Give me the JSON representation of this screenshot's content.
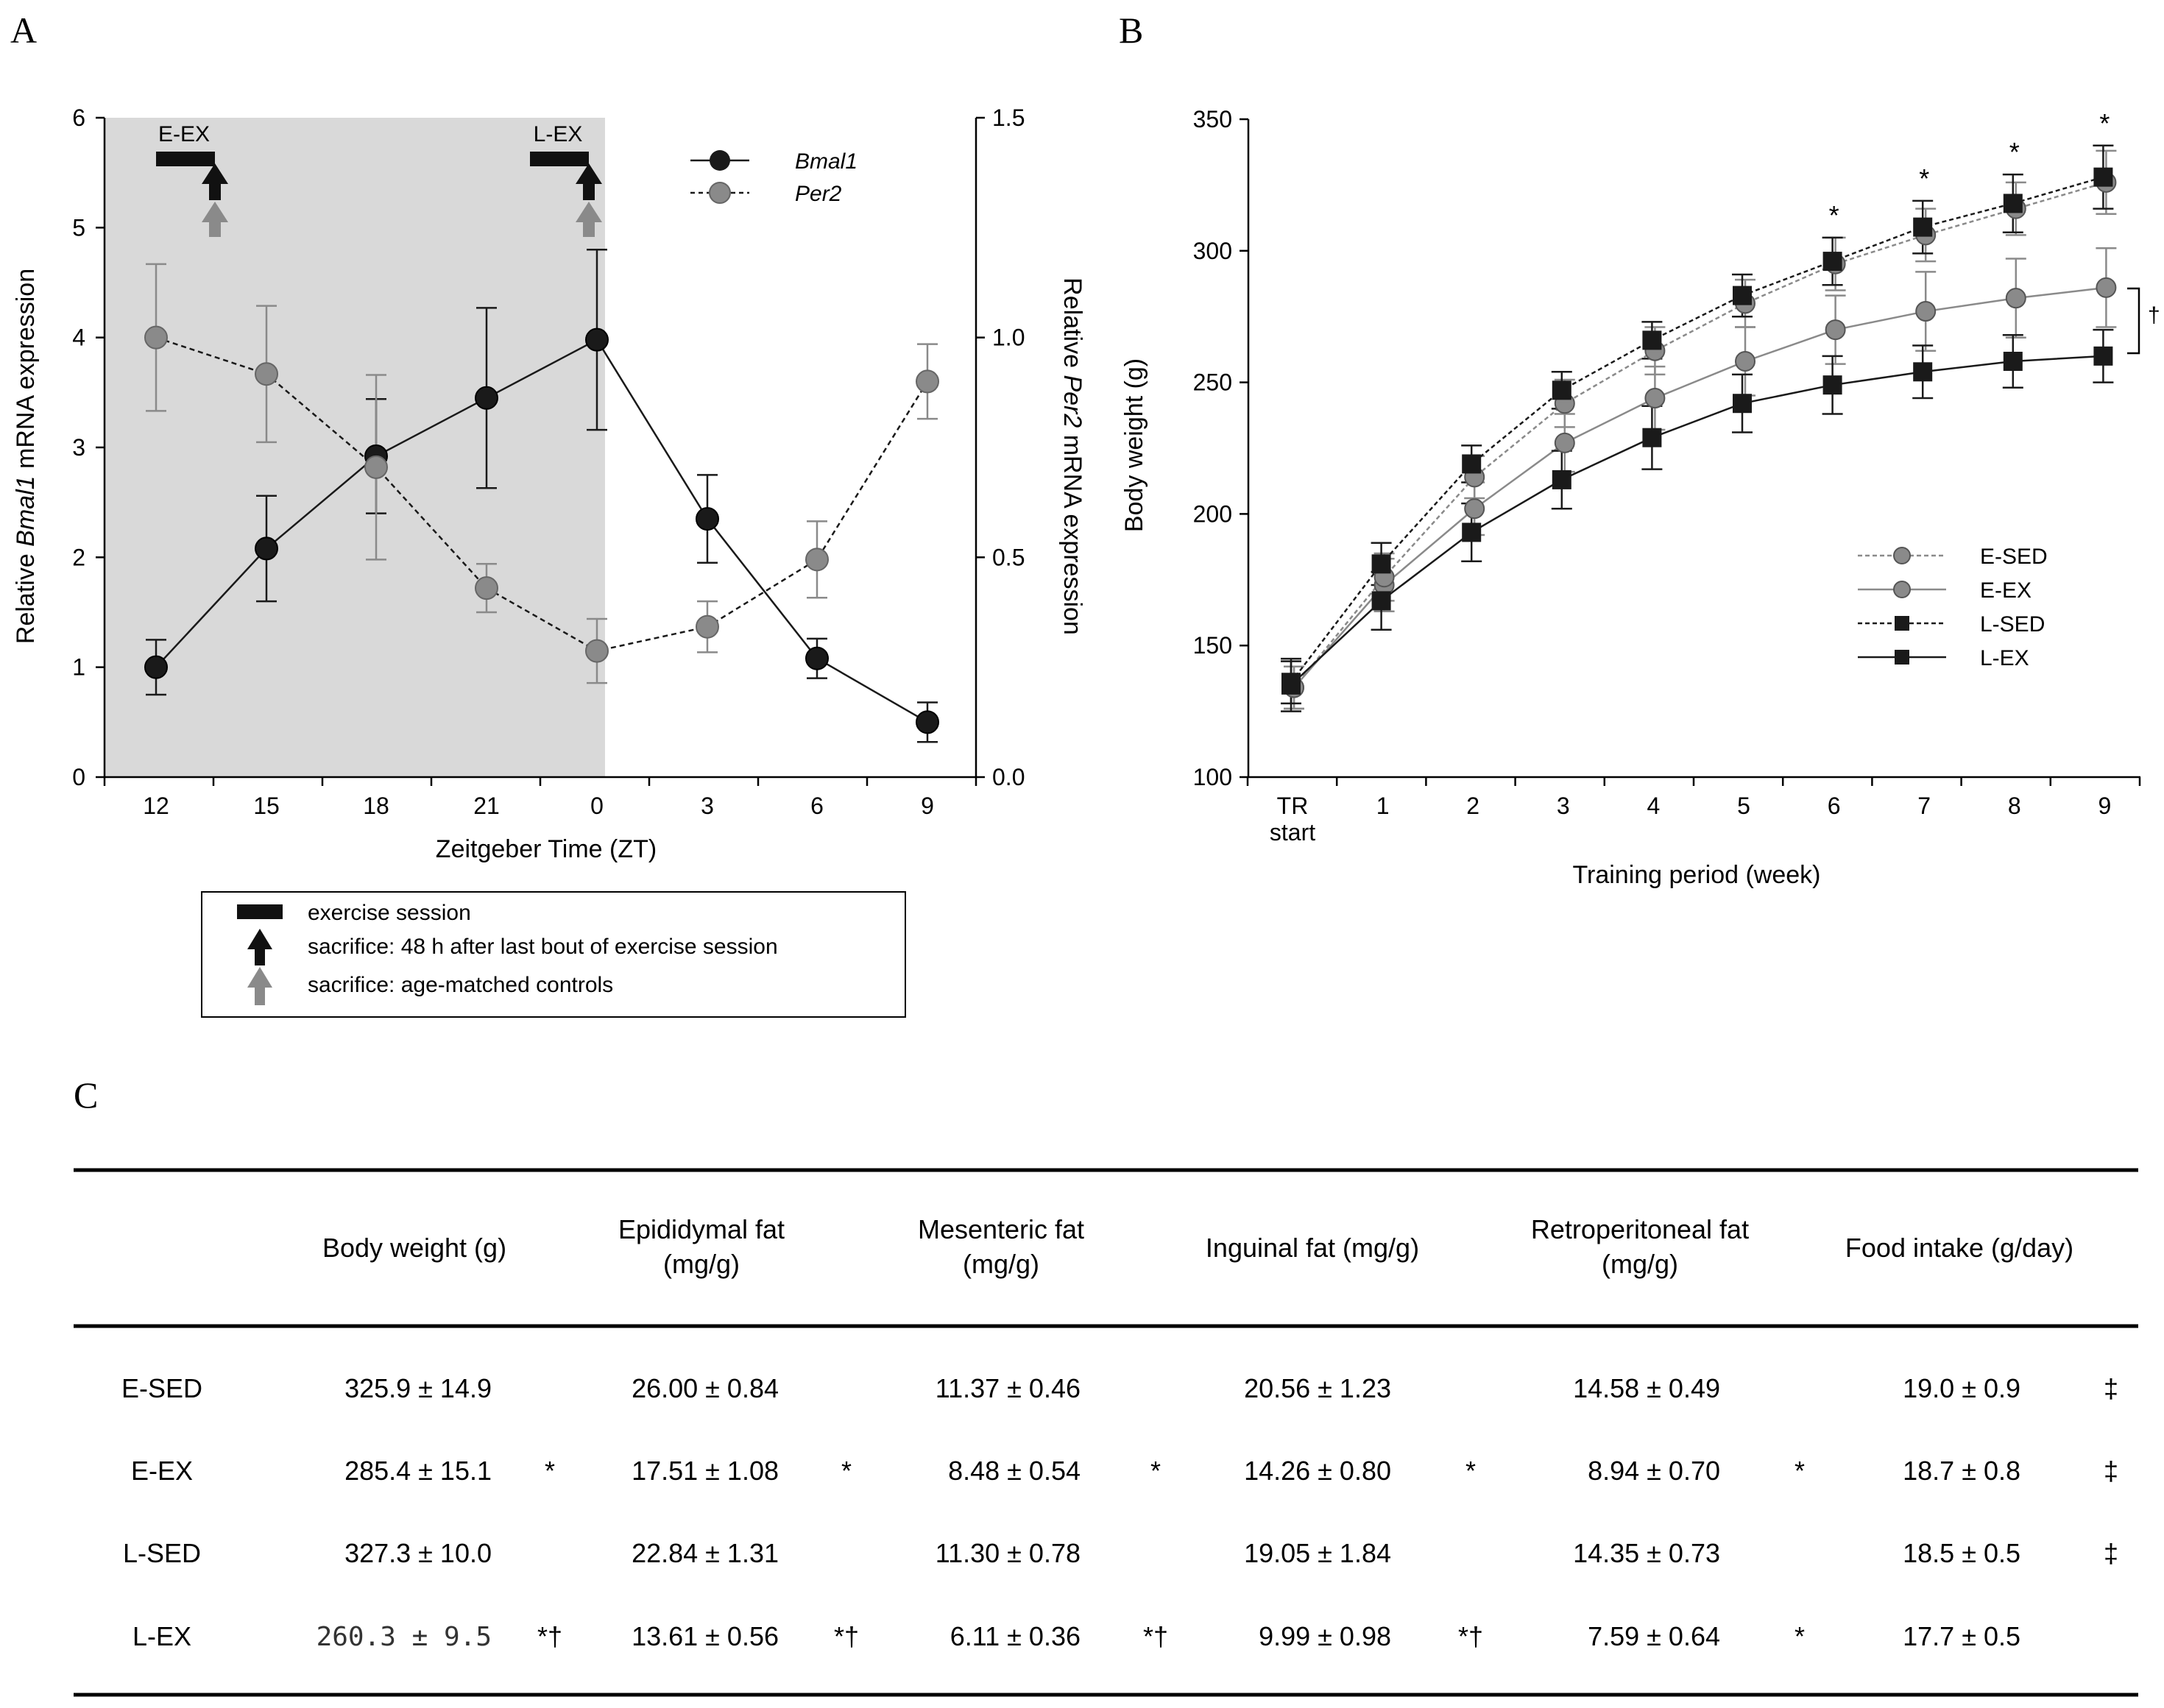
{
  "panel_labels": {
    "a": "A",
    "b": "B",
    "c": "C"
  },
  "chart_data": [
    {
      "id": "A",
      "type": "line",
      "x_categories": [
        "12",
        "15",
        "18",
        "21",
        "0",
        "3",
        "6",
        "9"
      ],
      "xlabel": "Zeitgeber Time (ZT)",
      "ylabel_left": {
        "pre": "Relative ",
        "italic": "Bmal1",
        "post": " mRNA expression"
      },
      "ylabel_right": {
        "pre": "Relative ",
        "italic": "Per2",
        "post": " mRNA expression"
      },
      "ylim_left": [
        0,
        6
      ],
      "yticks_left": [
        "0",
        "1",
        "2",
        "3",
        "4",
        "5",
        "6"
      ],
      "ylim_right": [
        0,
        1.5
      ],
      "yticks_right": [
        "0.0",
        "0.5",
        "1.0",
        "1.5"
      ],
      "dark_period": "ZT12-ZT0 (shaded)",
      "series": [
        {
          "name": "Bmal1",
          "axis": "left",
          "style": "solid",
          "color": "#1a1a1a",
          "values": [
            1.0,
            2.08,
            2.92,
            3.45,
            3.98,
            2.35,
            1.08,
            0.5
          ],
          "err": [
            0.25,
            0.48,
            0.52,
            0.82,
            0.82,
            0.4,
            0.18,
            0.18
          ]
        },
        {
          "name": "Per2",
          "axis": "right",
          "style": "dashed",
          "color": "#8a8a8a",
          "values": [
            1.0,
            0.917,
            0.705,
            0.43,
            0.287,
            0.342,
            0.495,
            0.9
          ],
          "err": [
            0.167,
            0.155,
            0.21,
            0.055,
            0.073,
            0.058,
            0.087,
            0.085
          ]
        }
      ],
      "exercise_markers": [
        {
          "label": "E-EX",
          "at": "ZT12-ZT13"
        },
        {
          "label": "L-EX",
          "at": "ZT23-ZT0"
        }
      ],
      "key": {
        "exercise": "exercise session",
        "sacrifice_ex": "sacrifice: 48 h after last bout of exercise session",
        "sacrifice_ctrl": "sacrifice: age-matched controls"
      },
      "colors": {
        "shade": "#d9d9d9",
        "dark": "#1a1a1a",
        "gray": "#8a8a8a"
      }
    },
    {
      "id": "B",
      "type": "line",
      "x_categories": [
        "TR start",
        "1",
        "2",
        "3",
        "4",
        "5",
        "6",
        "7",
        "8",
        "9"
      ],
      "xlabel": "Training period (week)",
      "ylabel": "Body weight (g)",
      "ylim": [
        100,
        350
      ],
      "yticks": [
        "100",
        "150",
        "200",
        "250",
        "300",
        "350"
      ],
      "series": [
        {
          "name": "E-SED",
          "style": "dashed",
          "marker": "circle",
          "color": "#8a8a8a",
          "values": [
            134,
            176,
            214,
            242,
            262,
            280,
            295,
            306,
            316,
            326
          ],
          "err": [
            8,
            9,
            8,
            9,
            9,
            9,
            10,
            10,
            10,
            12
          ]
        },
        {
          "name": "E-EX",
          "style": "solid",
          "marker": "circle",
          "color": "#8a8a8a",
          "values": [
            134,
            173,
            202,
            227,
            244,
            258,
            270,
            277,
            282,
            286
          ],
          "err": [
            8,
            10,
            10,
            11,
            12,
            13,
            13,
            15,
            15,
            15
          ]
        },
        {
          "name": "L-SED",
          "style": "dashed",
          "marker": "square",
          "color": "#1a1a1a",
          "values": [
            136,
            181,
            219,
            247,
            266,
            283,
            296,
            309,
            318,
            328
          ],
          "err": [
            8,
            8,
            7,
            7,
            7,
            8,
            9,
            10,
            11,
            12
          ]
        },
        {
          "name": "L-EX",
          "style": "solid",
          "marker": "square",
          "color": "#1a1a1a",
          "values": [
            135,
            167,
            193,
            213,
            229,
            242,
            249,
            254,
            258,
            260
          ],
          "err": [
            10,
            11,
            11,
            11,
            12,
            11,
            11,
            10,
            10,
            10
          ]
        }
      ],
      "significance": [
        "*",
        "*",
        "*",
        "*"
      ],
      "significance_weeks": [
        "6",
        "7",
        "8",
        "9"
      ],
      "bracket_symbol": "†"
    }
  ],
  "table": {
    "headers": [
      {
        "line1": "Body weight (g)",
        "line2": ""
      },
      {
        "line1": "Epididymal fat",
        "line2": "(mg/g)"
      },
      {
        "line1": "Mesenteric fat",
        "line2": "(mg/g)"
      },
      {
        "line1": "Inguinal fat (mg/g)",
        "line2": ""
      },
      {
        "line1": "Retroperitoneal fat",
        "line2": "(mg/g)"
      },
      {
        "line1": "Food intake (g/day)",
        "line2": ""
      }
    ],
    "rows": [
      {
        "label": "E-SED",
        "cells": [
          {
            "v": "325.9 ± 14.9",
            "m": ""
          },
          {
            "v": "26.00 ± 0.84",
            "m": ""
          },
          {
            "v": "11.37 ± 0.46",
            "m": ""
          },
          {
            "v": "20.56 ± 1.23",
            "m": ""
          },
          {
            "v": "14.58 ± 0.49",
            "m": ""
          },
          {
            "v": "19.0 ± 0.9",
            "m": "‡"
          }
        ]
      },
      {
        "label": "E-EX",
        "cells": [
          {
            "v": "285.4 ± 15.1",
            "m": "*"
          },
          {
            "v": "17.51 ± 1.08",
            "m": "*"
          },
          {
            "v": "8.48 ± 0.54",
            "m": "*"
          },
          {
            "v": "14.26 ± 0.80",
            "m": "*"
          },
          {
            "v": "8.94 ± 0.70",
            "m": "*"
          },
          {
            "v": "18.7 ± 0.8",
            "m": "‡"
          }
        ]
      },
      {
        "label": "L-SED",
        "cells": [
          {
            "v": "327.3 ± 10.0",
            "m": ""
          },
          {
            "v": "22.84 ± 1.31",
            "m": ""
          },
          {
            "v": "11.30 ± 0.78",
            "m": ""
          },
          {
            "v": "19.05 ± 1.84",
            "m": ""
          },
          {
            "v": "14.35 ± 0.73",
            "m": ""
          },
          {
            "v": "18.5 ± 0.5",
            "m": "‡"
          }
        ]
      },
      {
        "label": "L-EX",
        "cells": [
          {
            "v": "260.3 ± 9.5",
            "m": "*†"
          },
          {
            "v": "13.61 ± 0.56",
            "m": "*†"
          },
          {
            "v": "6.11 ± 0.36",
            "m": "*†"
          },
          {
            "v": "9.99 ± 0.98",
            "m": "*†"
          },
          {
            "v": "7.59 ± 0.64",
            "m": "*"
          },
          {
            "v": "17.7 ± 0.5",
            "m": ""
          }
        ]
      }
    ]
  }
}
